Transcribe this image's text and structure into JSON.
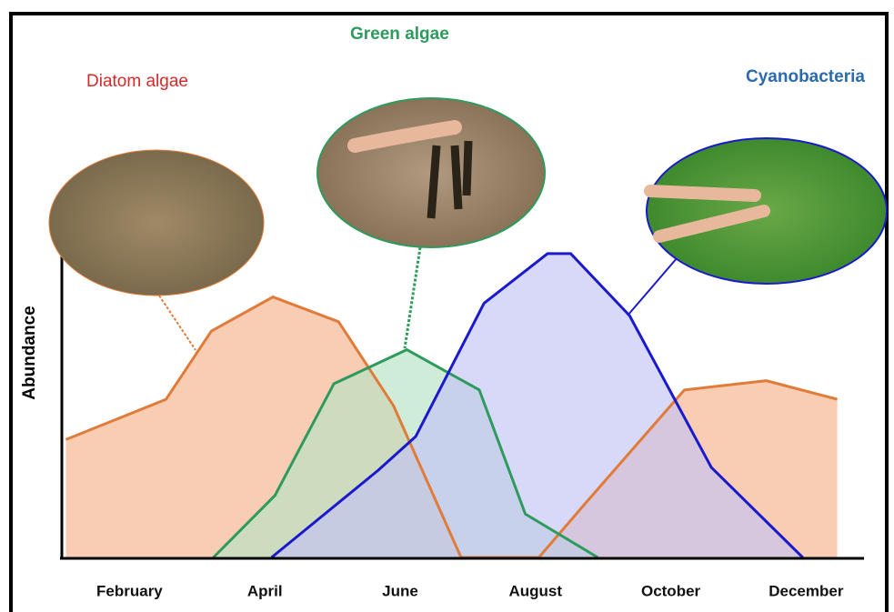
{
  "chart_data": {
    "type": "area",
    "y_label": "Abundance",
    "xlim": [
      1,
      12.6
    ],
    "ylim": [
      0,
      100
    ],
    "xticks": [
      {
        "value": 2,
        "label": "February"
      },
      {
        "value": 4,
        "label": "April"
      },
      {
        "value": 6,
        "label": "June"
      },
      {
        "value": 8,
        "label": "August"
      },
      {
        "value": 10,
        "label": "October"
      },
      {
        "value": 12,
        "label": "December"
      }
    ],
    "series": [
      {
        "name": "Diatom algae",
        "color": "#e07b39",
        "fill": "#f6b28a",
        "x": [
          1.06,
          2.54,
          3.21,
          4.12,
          5.09,
          5.9,
          6.9,
          8.05,
          8.72,
          10.2,
          11.41,
          12.46
        ],
        "values": [
          38,
          51,
          73,
          84,
          76,
          49,
          0,
          0,
          17,
          54,
          57,
          51
        ]
      },
      {
        "name": "Green algae",
        "color": "#2e9a5c",
        "fill": "#b5e2c4",
        "x": [
          3.24,
          4.15,
          5.02,
          6.1,
          7.17,
          7.85,
          8.92
        ],
        "values": [
          0,
          20,
          56,
          67,
          54,
          14,
          0
        ]
      },
      {
        "name": "Cyanobacteria",
        "color": "#1a1acc",
        "fill": "#c3c3f6",
        "x": [
          4.1,
          5.67,
          6.23,
          7.24,
          8.18,
          8.52,
          9.39,
          10.6,
          11.95
        ],
        "values": [
          0,
          28,
          39,
          82,
          98,
          98,
          78,
          29,
          0
        ]
      }
    ]
  }
}
